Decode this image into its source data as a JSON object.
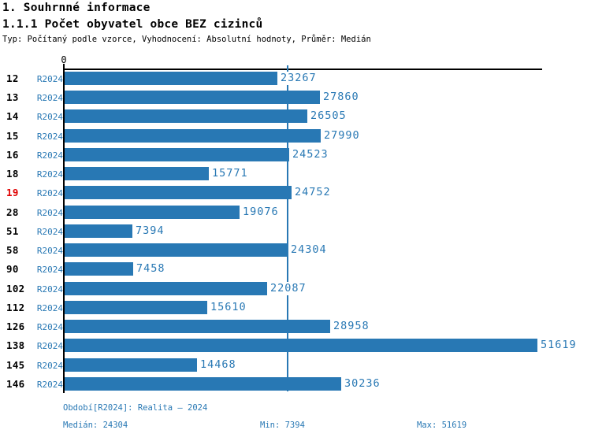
{
  "page": {
    "title1": "1. Souhrnné informace",
    "title2": "1.1.1 Počet obyvatel obce BEZ cizinců",
    "subtitle": "Typ: Počítaný podle vzorce, Vyhodnocení: Absolutní hodnoty, Průměr: Medián"
  },
  "chart_data": {
    "type": "bar",
    "orientation": "horizontal",
    "axis_zero_label": "0",
    "series_label": "R2024",
    "categories": [
      "12",
      "13",
      "14",
      "15",
      "16",
      "18",
      "19",
      "28",
      "51",
      "58",
      "90",
      "102",
      "112",
      "126",
      "138",
      "145",
      "146"
    ],
    "values": [
      23267,
      27860,
      26505,
      27990,
      24523,
      15771,
      24752,
      19076,
      7394,
      24304,
      7458,
      22087,
      15610,
      28958,
      51619,
      14468,
      30236
    ],
    "highlighted_category": "19",
    "median": 24304,
    "min": 7394,
    "max": 51619,
    "xlim": [
      0,
      52000
    ],
    "legend_position": "none",
    "grid": false,
    "colors": {
      "bar": "#2878b4",
      "highlight": "#e00000",
      "axis": "#000000"
    }
  },
  "footer": {
    "period": "Období[R2024]: Realita – 2024",
    "median_label": "Medián: 24304",
    "min_label": "Min: 7394",
    "max_label": "Max: 51619"
  }
}
